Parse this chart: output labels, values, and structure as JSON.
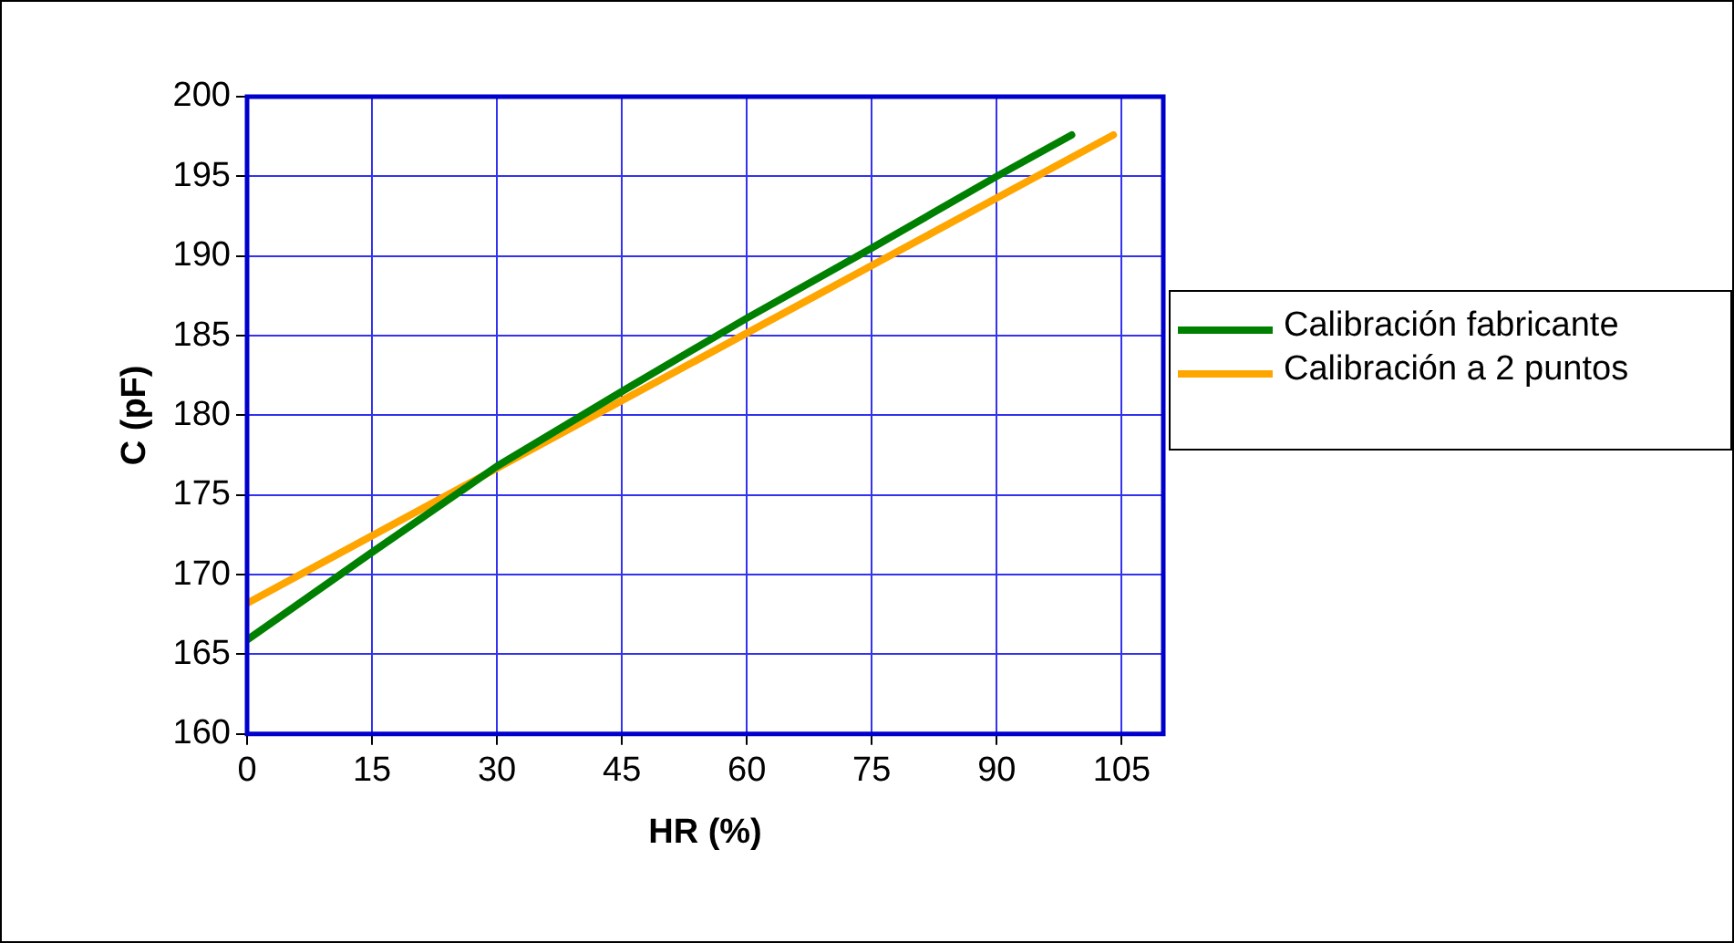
{
  "chart_data": {
    "type": "line",
    "xlabel": "HR (%)",
    "ylabel": "C (pF)",
    "xlim": [
      0,
      110
    ],
    "xticks": [
      0,
      15,
      30,
      45,
      60,
      75,
      90,
      105
    ],
    "ylim": [
      160,
      200
    ],
    "yticks": [
      160,
      165,
      170,
      175,
      180,
      185,
      190,
      195,
      200
    ],
    "grid": true,
    "legend": "right",
    "marker": "none",
    "line_style": "solid",
    "series": [
      {
        "name": "Calibración fabricante",
        "color": "#008000",
        "x": [
          0,
          15,
          30,
          45,
          60,
          75,
          90,
          99
        ],
        "values": [
          165.9,
          171.4,
          176.8,
          181.5,
          186.1,
          190.5,
          195.0,
          197.6
        ]
      },
      {
        "name": "Calibración a 2 puntos",
        "color": "#ffa500",
        "x": [
          0,
          104
        ],
        "values": [
          168.2,
          197.6
        ]
      }
    ]
  }
}
